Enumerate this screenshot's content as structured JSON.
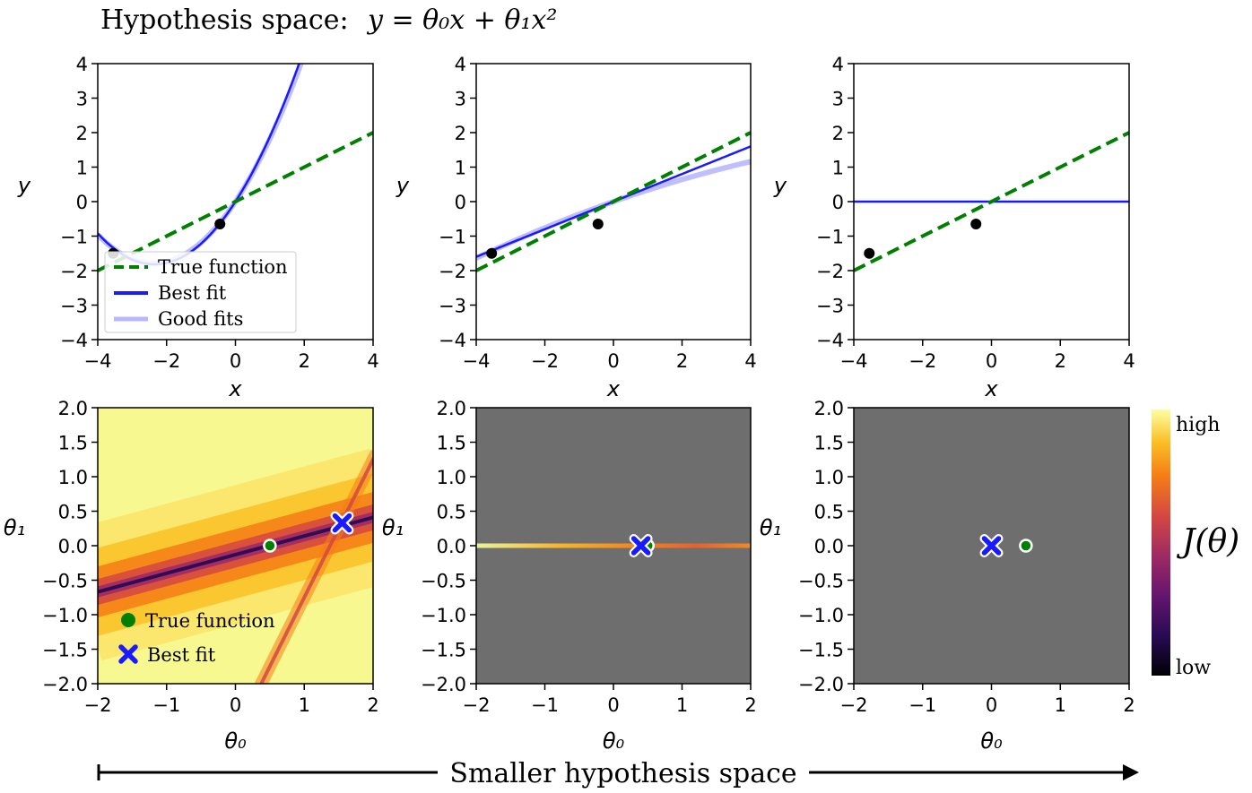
{
  "title": {
    "prefix": "Hypothesis space:",
    "equation": "y = θ₀x + θ₁x²"
  },
  "footer": {
    "label": "Smaller hypothesis space"
  },
  "colorbar": {
    "high_label": "high",
    "low_label": "low",
    "title": "J(θ)"
  },
  "colors": {
    "true_function": "#008000",
    "best_fit": "#1a1aff",
    "good_fit": "#b8b8ff",
    "masked": "#6e6e6e"
  },
  "chart_data": [
    {
      "type": "line",
      "panel": "top-left",
      "xlabel": "x",
      "ylabel": "y",
      "xlim": [
        -4,
        4
      ],
      "ylim": [
        -4,
        4
      ],
      "xticks": [
        "−4",
        "−2",
        "0",
        "2",
        "4"
      ],
      "yticks": [
        "4",
        "3",
        "2",
        "1",
        "0",
        "−1",
        "−2",
        "−3",
        "−4"
      ],
      "points": [
        {
          "x": -3.55,
          "y": -1.5
        },
        {
          "x": -0.45,
          "y": -0.65
        }
      ],
      "true_function": {
        "slope": 0.5,
        "intercept": 0
      },
      "best_fit": {
        "theta0": 1.55,
        "theta1": 0.33
      },
      "legend": {
        "placement": "lower-left",
        "entries": [
          "True function",
          "Best fit",
          "Good fits"
        ]
      }
    },
    {
      "type": "line",
      "panel": "top-middle",
      "xlabel": "x",
      "ylabel": "y",
      "xlim": [
        -4,
        4
      ],
      "ylim": [
        -4,
        4
      ],
      "xticks": [
        "−4",
        "−2",
        "0",
        "2",
        "4"
      ],
      "yticks": [
        "4",
        "3",
        "2",
        "1",
        "0",
        "−1",
        "−2",
        "−3",
        "−4"
      ],
      "points": [
        {
          "x": -3.55,
          "y": -1.5
        },
        {
          "x": -0.45,
          "y": -0.65
        }
      ],
      "true_function": {
        "slope": 0.5,
        "intercept": 0
      },
      "best_fit": {
        "theta0": 0.4,
        "theta1": 0
      }
    },
    {
      "type": "line",
      "panel": "top-right",
      "xlabel": "x",
      "ylabel": "y",
      "xlim": [
        -4,
        4
      ],
      "ylim": [
        -4,
        4
      ],
      "xticks": [
        "−4",
        "−2",
        "0",
        "2",
        "4"
      ],
      "yticks": [
        "4",
        "3",
        "2",
        "1",
        "0",
        "−1",
        "−2",
        "−3",
        "−4"
      ],
      "points": [
        {
          "x": -3.55,
          "y": -1.5
        },
        {
          "x": -0.45,
          "y": -0.65
        }
      ],
      "true_function": {
        "slope": 0.5,
        "intercept": 0
      },
      "best_fit": {
        "theta0": 0,
        "theta1": 0
      }
    },
    {
      "type": "heatmap",
      "panel": "bottom-left",
      "xlabel": "θ₀",
      "ylabel": "θ₁",
      "xlim": [
        -2,
        2
      ],
      "ylim": [
        -2,
        2
      ],
      "xticks": [
        "−2",
        "−1",
        "0",
        "1",
        "2"
      ],
      "yticks": [
        "2.0",
        "1.5",
        "1.0",
        "0.5",
        "0.0",
        "−0.5",
        "−1.0",
        "−1.5",
        "−2.0"
      ],
      "true_function_point": {
        "theta0": 0.5,
        "theta1": 0
      },
      "best_fit_point": {
        "theta0": 1.55,
        "theta1": 0.33
      },
      "legend": {
        "placement": "lower-left",
        "entries": [
          "True function",
          "Best fit"
        ]
      }
    },
    {
      "type": "heatmap",
      "panel": "bottom-middle",
      "xlabel": "θ₀",
      "ylabel": "θ₁",
      "xlim": [
        -2,
        2
      ],
      "ylim": [
        -2,
        2
      ],
      "xticks": [
        "−2",
        "−1",
        "0",
        "1",
        "2"
      ],
      "yticks": [
        "2.0",
        "1.5",
        "1.0",
        "0.5",
        "0.0",
        "−0.5",
        "−1.0",
        "−1.5",
        "−2.0"
      ],
      "true_function_point": {
        "theta0": 0.5,
        "theta1": 0
      },
      "best_fit_point": {
        "theta0": 0.4,
        "theta1": 0
      }
    },
    {
      "type": "heatmap",
      "panel": "bottom-right",
      "xlabel": "θ₀",
      "ylabel": "θ₁",
      "xlim": [
        -2,
        2
      ],
      "ylim": [
        -2,
        2
      ],
      "xticks": [
        "−2",
        "−1",
        "0",
        "1",
        "2"
      ],
      "yticks": [
        "2.0",
        "1.5",
        "1.0",
        "0.5",
        "0.0",
        "−0.5",
        "−1.0",
        "−1.5",
        "−2.0"
      ],
      "true_function_point": {
        "theta0": 0.5,
        "theta1": 0
      },
      "best_fit_point": {
        "theta0": 0,
        "theta1": 0
      }
    }
  ]
}
